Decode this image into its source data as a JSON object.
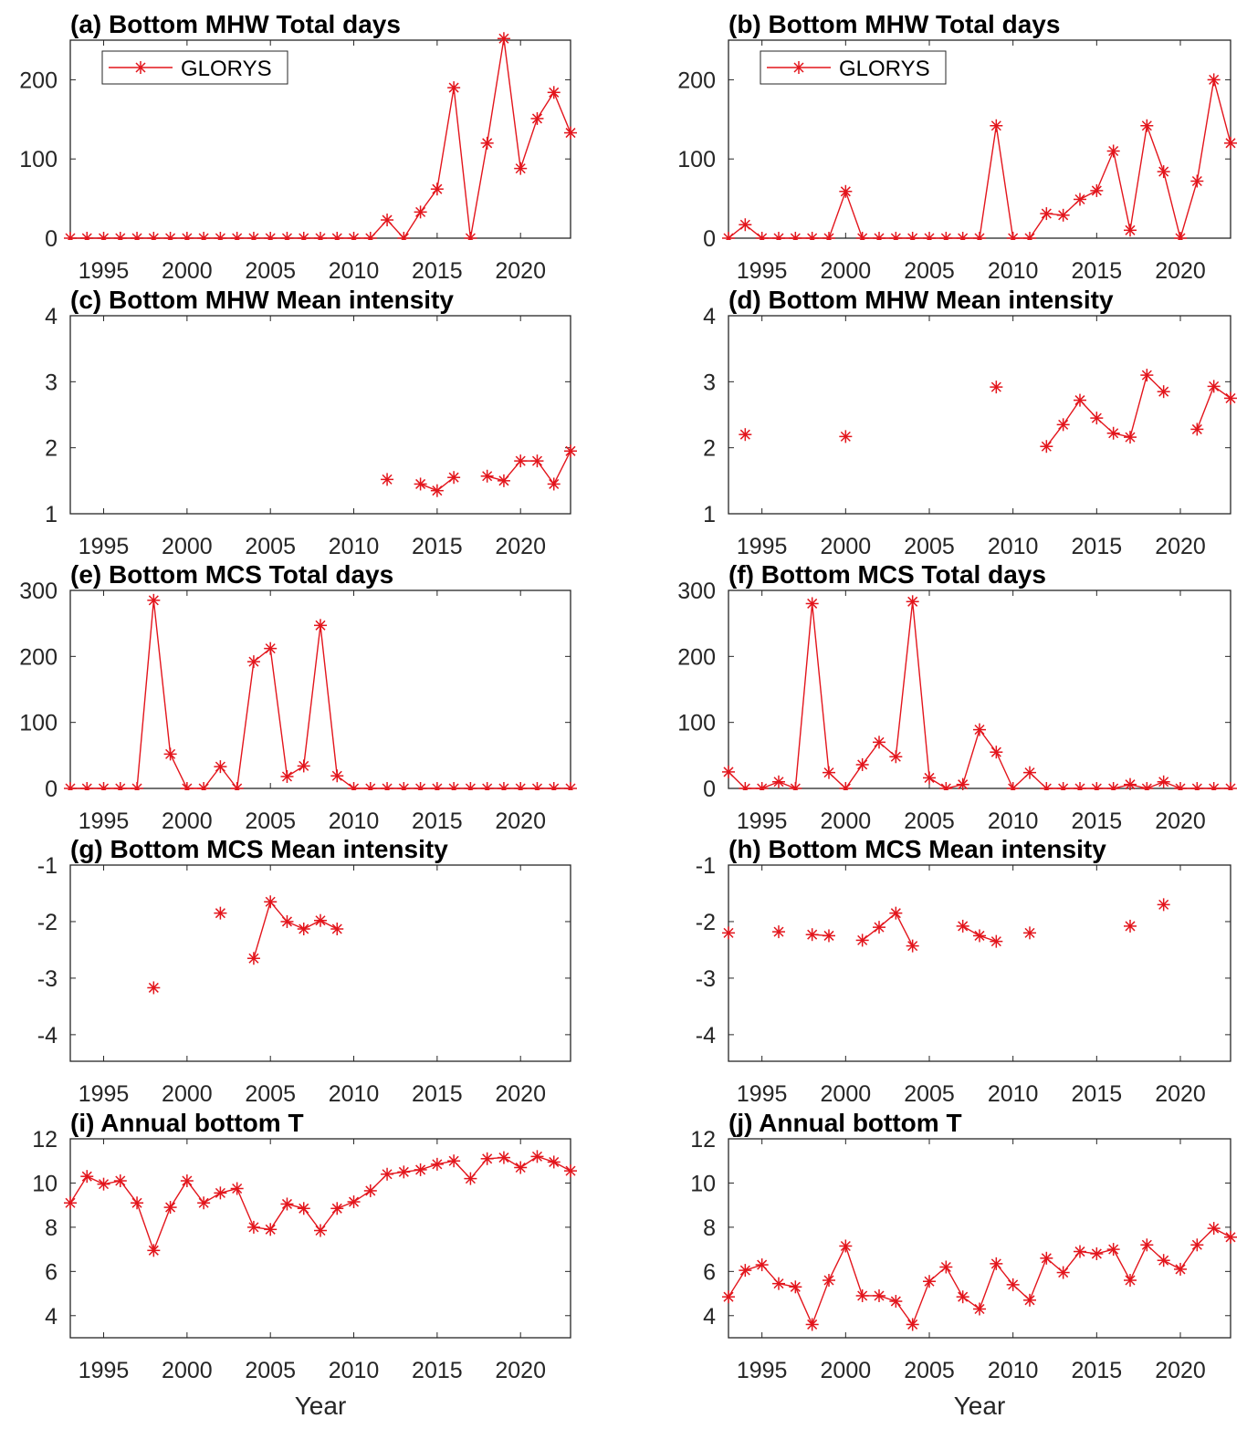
{
  "chart_data": [
    {
      "id": "a",
      "type": "line",
      "title": "(a) Bottom MHW Total days",
      "xlabel": "",
      "ylabel": "",
      "xlim": [
        1993,
        2023
      ],
      "ylim": [
        0,
        250
      ],
      "yticks": [
        0,
        100,
        200
      ],
      "xticks": [
        1995,
        2000,
        2005,
        2010,
        2015,
        2020
      ],
      "legend": {
        "entries": [
          "GLORYS"
        ],
        "placement": "top-left"
      },
      "series": [
        {
          "name": "GLORYS",
          "color": "#e3151c",
          "values": [
            0,
            0,
            0,
            0,
            0,
            0,
            0,
            0,
            0,
            0,
            0,
            0,
            0,
            0,
            0,
            0,
            0,
            0,
            0,
            23,
            0,
            33,
            62,
            190,
            0,
            120,
            252,
            88,
            151,
            184,
            133
          ]
        }
      ]
    },
    {
      "id": "b",
      "type": "line",
      "title": "(b) Bottom MHW Total days",
      "xlabel": "",
      "ylabel": "",
      "xlim": [
        1993,
        2023
      ],
      "ylim": [
        0,
        250
      ],
      "yticks": [
        0,
        100,
        200
      ],
      "xticks": [
        1995,
        2000,
        2005,
        2010,
        2015,
        2020
      ],
      "legend": {
        "entries": [
          "GLORYS"
        ],
        "placement": "top-left"
      },
      "series": [
        {
          "name": "GLORYS",
          "color": "#e3151c",
          "values": [
            0,
            17,
            0,
            0,
            0,
            0,
            0,
            59,
            0,
            0,
            0,
            0,
            0,
            0,
            0,
            0,
            142,
            0,
            0,
            31,
            29,
            49,
            60,
            110,
            10,
            142,
            84,
            0,
            72,
            200,
            120
          ]
        }
      ]
    },
    {
      "id": "c",
      "type": "line",
      "title": "(c) Bottom MHW Mean intensity",
      "xlabel": "",
      "ylabel": "",
      "xlim": [
        1993,
        2023
      ],
      "ylim": [
        1,
        4
      ],
      "yticks": [
        1,
        2,
        3,
        4
      ],
      "xticks": [
        1995,
        2000,
        2005,
        2010,
        2015,
        2020
      ],
      "series": [
        {
          "name": "GLORYS",
          "color": "#e3151c",
          "values": [
            null,
            null,
            null,
            null,
            null,
            null,
            null,
            null,
            null,
            null,
            null,
            null,
            null,
            null,
            null,
            null,
            null,
            null,
            null,
            1.52,
            null,
            1.45,
            1.35,
            1.55,
            null,
            1.57,
            1.5,
            1.8,
            1.8,
            1.45,
            1.95
          ]
        }
      ]
    },
    {
      "id": "d",
      "type": "line",
      "title": "(d) Bottom MHW Mean intensity",
      "xlabel": "",
      "ylabel": "",
      "xlim": [
        1993,
        2023
      ],
      "ylim": [
        1,
        4
      ],
      "yticks": [
        1,
        2,
        3,
        4
      ],
      "xticks": [
        1995,
        2000,
        2005,
        2010,
        2015,
        2020
      ],
      "series": [
        {
          "name": "GLORYS",
          "color": "#e3151c",
          "values": [
            null,
            2.2,
            null,
            null,
            null,
            null,
            null,
            2.17,
            null,
            null,
            null,
            null,
            null,
            null,
            null,
            null,
            2.92,
            null,
            null,
            2.02,
            2.35,
            2.72,
            2.45,
            2.22,
            2.16,
            3.1,
            2.85,
            null,
            2.28,
            2.93,
            2.75
          ]
        }
      ]
    },
    {
      "id": "e",
      "type": "line",
      "title": "(e) Bottom MCS Total days",
      "xlabel": "",
      "ylabel": "",
      "xlim": [
        1993,
        2023
      ],
      "ylim": [
        0,
        300
      ],
      "yticks": [
        0,
        100,
        200,
        300
      ],
      "xticks": [
        1995,
        2000,
        2005,
        2010,
        2015,
        2020
      ],
      "series": [
        {
          "name": "GLORYS",
          "color": "#e3151c",
          "values": [
            0,
            0,
            0,
            0,
            0,
            285,
            52,
            0,
            0,
            33,
            0,
            192,
            212,
            18,
            34,
            247,
            19,
            0,
            0,
            0,
            0,
            0,
            0,
            0,
            0,
            0,
            0,
            0,
            0,
            0,
            0
          ]
        }
      ]
    },
    {
      "id": "f",
      "type": "line",
      "title": "(f) Bottom MCS Total days",
      "xlabel": "",
      "ylabel": "",
      "xlim": [
        1993,
        2023
      ],
      "ylim": [
        0,
        300
      ],
      "yticks": [
        0,
        100,
        200,
        300
      ],
      "xticks": [
        1995,
        2000,
        2005,
        2010,
        2015,
        2020
      ],
      "series": [
        {
          "name": "GLORYS",
          "color": "#e3151c",
          "values": [
            25,
            0,
            0,
            10,
            0,
            280,
            24,
            0,
            36,
            70,
            48,
            283,
            16,
            0,
            6,
            89,
            55,
            0,
            24,
            0,
            0,
            0,
            0,
            0,
            6,
            0,
            10,
            0,
            0,
            0,
            0
          ]
        }
      ]
    },
    {
      "id": "g",
      "type": "line",
      "title": "(g) Bottom MCS Mean intensity",
      "xlabel": "",
      "ylabel": "",
      "xlim": [
        1993,
        2023
      ],
      "ylim": [
        -4.47,
        -1
      ],
      "yticks": [
        -4,
        -3,
        -2,
        -1
      ],
      "xticks": [
        1995,
        2000,
        2005,
        2010,
        2015,
        2020
      ],
      "series": [
        {
          "name": "GLORYS",
          "color": "#e3151c",
          "values": [
            null,
            null,
            null,
            null,
            null,
            -3.17,
            null,
            null,
            null,
            -1.85,
            null,
            -2.65,
            -1.65,
            -2.0,
            -2.13,
            -1.98,
            -2.13,
            null,
            null,
            null,
            null,
            null,
            null,
            null,
            null,
            null,
            null,
            null,
            null,
            null,
            null
          ]
        }
      ]
    },
    {
      "id": "h",
      "type": "line",
      "title": "(h) Bottom MCS Mean intensity",
      "xlabel": "",
      "ylabel": "",
      "xlim": [
        1993,
        2023
      ],
      "ylim": [
        -4.47,
        -1
      ],
      "yticks": [
        -4,
        -3,
        -2,
        -1
      ],
      "xticks": [
        1995,
        2000,
        2005,
        2010,
        2015,
        2020
      ],
      "series": [
        {
          "name": "GLORYS",
          "color": "#e3151c",
          "values": [
            -2.2,
            null,
            null,
            -2.18,
            null,
            -2.23,
            -2.25,
            null,
            -2.33,
            -2.1,
            -1.85,
            -2.43,
            null,
            null,
            -2.08,
            -2.25,
            -2.35,
            null,
            -2.2,
            null,
            null,
            null,
            null,
            null,
            -2.08,
            null,
            -1.7,
            null,
            null,
            null,
            null
          ]
        }
      ]
    },
    {
      "id": "i",
      "type": "line",
      "title": "(i) Annual bottom T",
      "xlabel": "Year",
      "ylabel": "",
      "xlim": [
        1993,
        2023
      ],
      "ylim": [
        3,
        12
      ],
      "yticks": [
        4,
        6,
        8,
        10,
        12
      ],
      "xticks": [
        1995,
        2000,
        2005,
        2010,
        2015,
        2020
      ],
      "series": [
        {
          "name": "GLORYS",
          "color": "#e3151c",
          "values": [
            9.1,
            10.3,
            9.95,
            10.1,
            9.1,
            6.95,
            8.9,
            10.1,
            9.1,
            9.55,
            9.75,
            8.0,
            7.9,
            9.05,
            8.85,
            7.85,
            8.85,
            9.15,
            9.65,
            10.4,
            10.5,
            10.6,
            10.85,
            11.0,
            10.2,
            11.1,
            11.15,
            10.7,
            11.2,
            10.95,
            10.55
          ]
        }
      ]
    },
    {
      "id": "j",
      "type": "line",
      "title": "(j) Annual bottom T",
      "xlabel": "Year",
      "ylabel": "",
      "xlim": [
        1993,
        2023
      ],
      "ylim": [
        3,
        12
      ],
      "yticks": [
        4,
        6,
        8,
        10,
        12
      ],
      "xticks": [
        1995,
        2000,
        2005,
        2010,
        2015,
        2020
      ],
      "series": [
        {
          "name": "GLORYS",
          "color": "#e3151c",
          "values": [
            4.85,
            6.05,
            6.3,
            5.45,
            5.3,
            3.6,
            5.6,
            7.15,
            4.9,
            4.9,
            4.65,
            3.6,
            5.55,
            6.2,
            4.85,
            4.3,
            6.35,
            5.4,
            4.7,
            6.6,
            5.95,
            6.9,
            6.8,
            7.0,
            5.6,
            7.2,
            6.5,
            6.1,
            7.2,
            7.95,
            7.55
          ]
        }
      ]
    }
  ]
}
